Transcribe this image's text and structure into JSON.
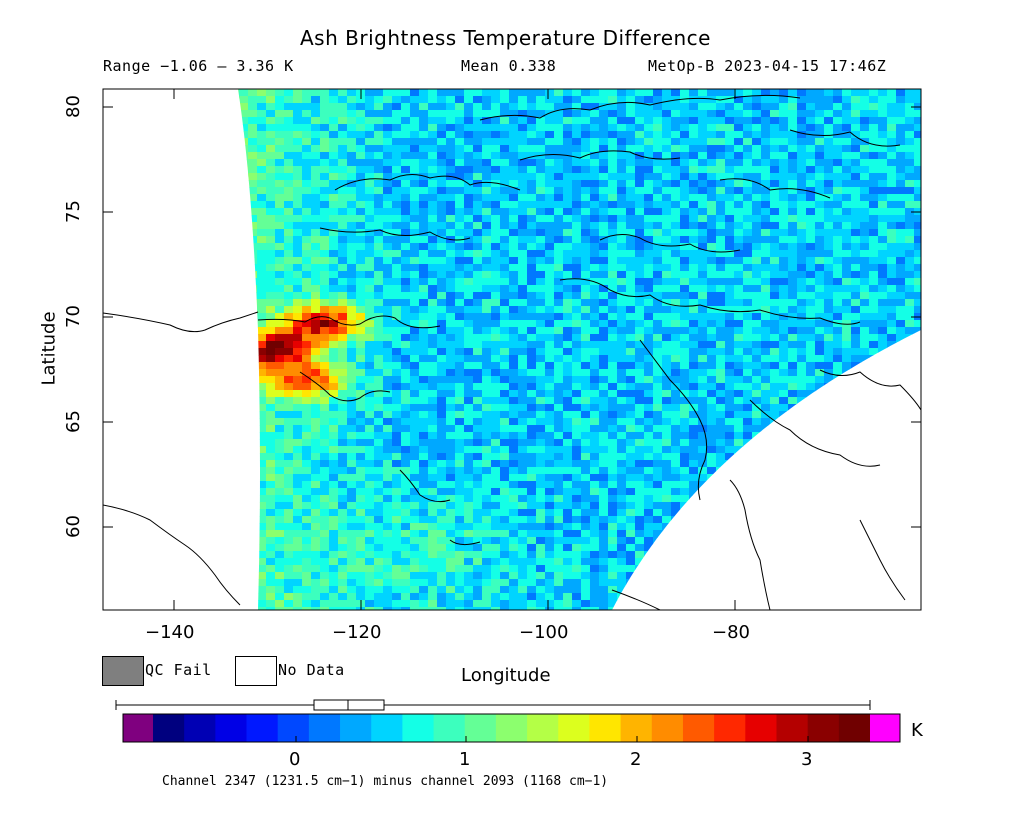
{
  "header": {
    "title": "Ash Brightness Temperature Difference",
    "range": "Range −1.06 – 3.36 K",
    "mean": "Mean 0.338",
    "source": "MetOp-B 2023-04-15 17:46Z"
  },
  "axes": {
    "xlabel": "Longitude",
    "ylabel": "Latitude",
    "x_ticks": [
      "−140",
      "−120",
      "−100",
      "−80"
    ],
    "y_ticks": [
      "80",
      "75",
      "70",
      "65",
      "60"
    ],
    "xlim": [
      -147,
      -62
    ],
    "ylim": [
      56,
      81
    ]
  },
  "legend": {
    "qc_fail": "QC Fail",
    "no_data": "No Data",
    "qc_fail_color": "#7f7f7f",
    "no_data_color": "#ffffff"
  },
  "colorbar": {
    "unit": "K",
    "ticks": [
      "0",
      "1",
      "2",
      "3"
    ],
    "range": [
      -1.06,
      3.36
    ],
    "colors": [
      "#00007f",
      "#0000b4",
      "#0000e6",
      "#0018ff",
      "#0048ff",
      "#0078ff",
      "#00a8ff",
      "#00d4ff",
      "#14ffe6",
      "#3cffbe",
      "#64ff96",
      "#8cff6e",
      "#b4ff46",
      "#dcff1e",
      "#ffe600",
      "#ffb400",
      "#ff8c00",
      "#ff5a00",
      "#ff2800",
      "#e60000",
      "#b40000",
      "#8a0000",
      "#700000"
    ],
    "under_color": "#7f007f",
    "over_color": "#ff00ff",
    "boxplot": {
      "min": -1.06,
      "q1": 0.12,
      "median": 0.31,
      "q3": 0.52,
      "max": 3.36
    }
  },
  "footnote": "Channel 2347 (1231.5 cm−1) minus channel 2093 (1168 cm−1)",
  "chart_data": {
    "type": "heatmap",
    "title": "Ash Brightness Temperature Difference",
    "xlabel": "Longitude",
    "ylabel": "Latitude",
    "xlim": [
      -147,
      -62
    ],
    "ylim": [
      56,
      81
    ],
    "value_range": [
      -1.06,
      3.36
    ],
    "mean": 0.338,
    "units": "K",
    "hotspots": [
      {
        "lon": -129,
        "lat": 68.5,
        "value": 3.0
      },
      {
        "lon": -126,
        "lat": 67.0,
        "value": 2.4
      },
      {
        "lon": -124,
        "lat": 69.8,
        "value": 2.8
      }
    ]
  }
}
